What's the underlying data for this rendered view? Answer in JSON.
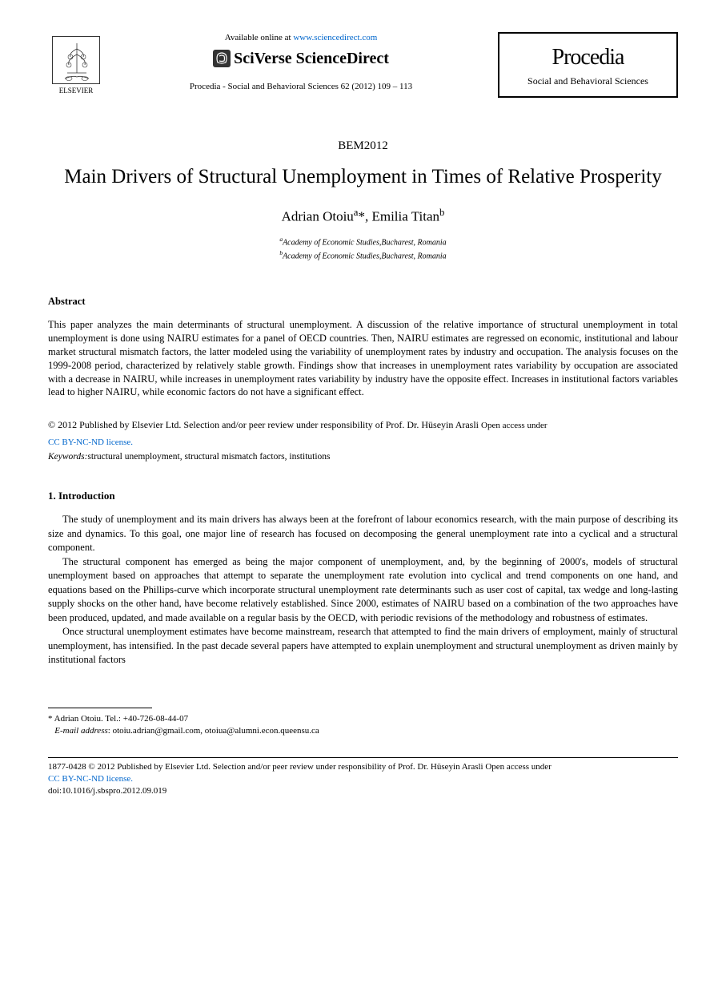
{
  "header": {
    "publisher_name": "ELSEVIER",
    "available_text": "Available online at ",
    "available_url": "www.sciencedirect.com",
    "brand": "SciVerse ScienceDirect",
    "reference": "Procedia - Social and Behavioral Sciences 62 (2012) 109 – 113",
    "procedia_title": "Procedia",
    "procedia_subtitle": "Social and Behavioral Sciences"
  },
  "article": {
    "conference": "BEM2012",
    "title": "Main Drivers of Structural Unemployment in Times of Relative Prosperity",
    "authors_html": "Adrian Otoiu<sup>a</sup>*, Emilia Titan<sup>b</sup>",
    "affiliation_a": "Academy of Economic Studies,Bucharest, Romania",
    "affiliation_b": "Academy of Economic Studies,Bucharest, Romania"
  },
  "abstract": {
    "heading": "Abstract",
    "text": "This paper analyzes the main determinants of structural unemployment. A discussion of the relative importance of structural unemployment in total unemployment is done using NAIRU estimates for a panel of OECD countries. Then, NAIRU estimates are regressed on economic, institutional and labour market structural mismatch factors, the latter modeled using the variability of unemployment rates by industry and occupation. The analysis focuses on the 1999-2008 period, characterized by relatively stable growth. Findings show that increases in unemployment rates variability by occupation are associated with a decrease in NAIRU, while increases in unemployment rates variability by industry have the opposite effect. Increases in institutional factors variables lead to higher NAIRU, while economic factors do not have a significant effect."
  },
  "copyright": {
    "line1": "© 2012 Published by Elsevier Ltd. Selection and/or peer review under responsibility of Prof. Dr. Hüseyin Arasli ",
    "open_access": "Open access under",
    "license": "CC BY-NC-ND license."
  },
  "keywords": {
    "label": "Keywords:",
    "text": "structural unemployment, structural mismatch factors, institutions"
  },
  "sections": {
    "intro_heading": "1. Introduction",
    "intro_p1": "The study of unemployment and its main drivers has always been at the forefront of labour economics research, with the main purpose of describing its size and dynamics. To this goal, one major line of research has focused on decomposing the general unemployment rate into a cyclical and a structural component.",
    "intro_p2": "The structural component has emerged as being the major component of unemployment, and, by the beginning of 2000's, models of structural unemployment based on approaches that attempt to separate the unemployment rate evolution into cyclical and trend components on one hand, and equations based on the Phillips-curve which incorporate structural unemployment rate determinants such as user cost of capital, tax wedge and long-lasting supply shocks on the other hand, have become relatively established. Since 2000, estimates of NAIRU based on a combination of the two approaches have been produced, updated, and made available on a regular basis by the OECD, with periodic revisions of the methodology and robustness of estimates.",
    "intro_p3": "Once structural unemployment estimates have become mainstream, research that attempted to find the main drivers of employment, mainly of structural unemployment, has intensified. In the past decade several papers have attempted to explain unemployment and structural unemployment as driven mainly by institutional factors"
  },
  "corresponding": {
    "author_line": "* Adrian Otoiu. Tel.: +40-726-08-44-07",
    "email_label": "E-mail address",
    "email_value": ": otoiu.adrian@gmail.com, otoiua@alumni.econ.queensu.ca"
  },
  "footer": {
    "issn_line": "1877-0428 © 2012 Published by Elsevier Ltd. Selection and/or peer review under responsibility of Prof. Dr. Hüseyin Arasli ",
    "open_access": "Open access under",
    "license": "CC BY-NC-ND license.",
    "doi": "doi:10.1016/j.sbspro.2012.09.019"
  }
}
